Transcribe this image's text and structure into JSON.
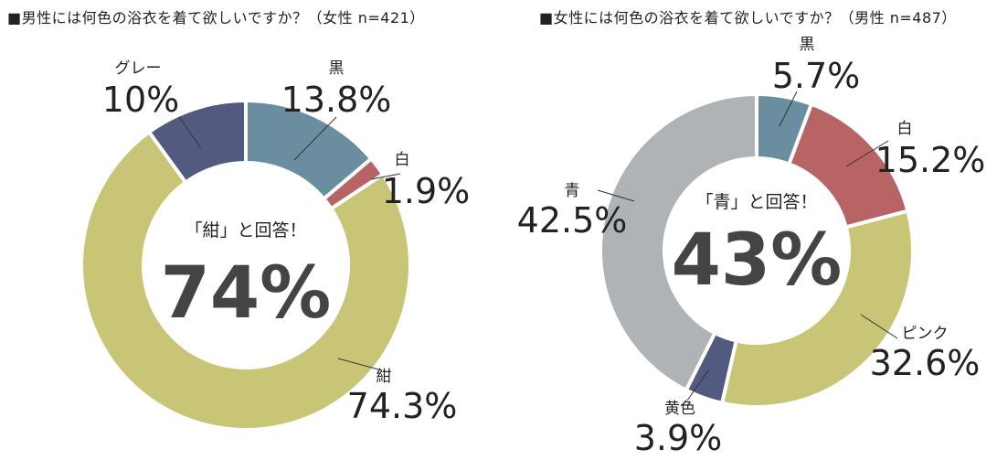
{
  "titles": {
    "left": "■男性には何色の浴衣を着て欲しいですか？（女性 n=421）",
    "right": "■女性には何色の浴衣を着て欲しいですか？（男性 n=487）"
  },
  "center": {
    "left": {
      "caption": "「紺」と回答！",
      "big": "74%"
    },
    "right": {
      "caption": "「青」と回答！",
      "big": "43%"
    }
  },
  "chart_data": [
    {
      "type": "pie",
      "donut": true,
      "title": "■男性には何色の浴衣を着て欲しいですか？（女性 n=421）",
      "categories": [
        "黒",
        "白",
        "紺",
        "グレー"
      ],
      "values": [
        13.8,
        1.9,
        74.3,
        10
      ],
      "value_labels": [
        "13.8%",
        "1.9%",
        "74.3%",
        "10%"
      ],
      "colors": [
        "#6a8e9f",
        "#b96464",
        "#c8c576",
        "#525a80"
      ]
    },
    {
      "type": "pie",
      "donut": true,
      "title": "■女性には何色の浴衣を着て欲しいですか？（男性 n=487）",
      "categories": [
        "黒",
        "白",
        "ピンク",
        "黄色",
        "青"
      ],
      "values": [
        5.7,
        15.2,
        32.6,
        3.9,
        42.5
      ],
      "value_labels": [
        "5.7%",
        "15.2%",
        "32.6%",
        "3.9%",
        "42.5%"
      ],
      "colors": [
        "#6a8e9f",
        "#b96464",
        "#c8c576",
        "#525a80",
        "#afb3b6"
      ]
    }
  ]
}
